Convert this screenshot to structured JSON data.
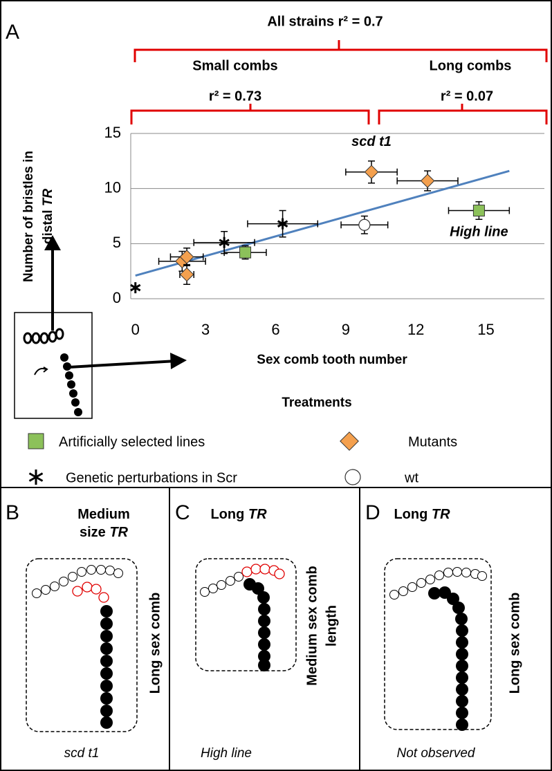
{
  "chart_data": {
    "type": "scatter",
    "panel_label": "A",
    "xlabel": "Sex comb tooth number",
    "ylabel": {
      "line1": "Number of bristles in",
      "line2": "distal",
      "line2_italic": "TR"
    },
    "xlim": [
      -0.2,
      17.5
    ],
    "ylim": [
      0,
      15
    ],
    "xticks": [
      0,
      3,
      6,
      9,
      12,
      15
    ],
    "yticks": [
      0,
      5,
      10,
      15
    ],
    "grid": true,
    "legend_title": "Treatments",
    "series": [
      {
        "name": "Artificially selected lines",
        "marker": "square",
        "color": "#8cc15a",
        "x": [
          4.7,
          14.7
        ],
        "y": [
          4.2,
          8.0
        ],
        "x_err": [
          0.9,
          1.3
        ],
        "y_err": [
          0.6,
          0.8
        ]
      },
      {
        "name": "Mutants",
        "marker": "diamond",
        "color": "#f4a04e",
        "x": [
          10.1,
          12.5,
          2.0,
          2.2,
          2.2
        ],
        "y": [
          11.5,
          10.7,
          3.4,
          3.8,
          2.2
        ],
        "x_err": [
          1.1,
          1.3,
          1.0,
          0.7,
          0.3
        ],
        "y_err": [
          1.0,
          0.9,
          0.9,
          0.8,
          0.9
        ]
      },
      {
        "name": "Genetic perturbations in Scr",
        "marker": "asterisk",
        "color": "#000000",
        "x": [
          0,
          3.8,
          6.3
        ],
        "y": [
          1.0,
          5.1,
          6.8
        ],
        "x_err": [
          0,
          1.3,
          1.5
        ],
        "y_err": [
          0,
          1.0,
          1.2
        ]
      },
      {
        "name": "wt",
        "marker": "circle",
        "color": "#ffffff",
        "x": [
          9.8
        ],
        "y": [
          6.7
        ],
        "x_err": [
          1.0
        ],
        "y_err": [
          0.8
        ]
      }
    ],
    "trendline": {
      "color": "#4f81bd",
      "x": [
        0,
        16
      ],
      "y": [
        2.1,
        11.6
      ]
    },
    "annotations": [
      {
        "text": "scd t1",
        "x": 10.1,
        "y": 14.2
      },
      {
        "text": "High line",
        "x": 14.7,
        "y": 6.0
      }
    ],
    "brackets": {
      "all": "All strains r² = 0.7",
      "small": "Small combs",
      "long": "Long combs",
      "small_r2": "r² = 0.73",
      "long_r2": "r² = 0.07"
    }
  },
  "panels": [
    {
      "label": "B",
      "title": [
        "Medium",
        "size"
      ],
      "title_italic": "TR",
      "side": [
        "Long sex comb"
      ],
      "caption": "scd t1"
    },
    {
      "label": "C",
      "title": [
        "Long"
      ],
      "title_italic": "TR",
      "side": [
        "Medium sex comb",
        "length"
      ],
      "caption": "High line"
    },
    {
      "label": "D",
      "title": [
        "Long"
      ],
      "title_italic": "TR",
      "side": [
        "Long sex comb"
      ],
      "caption": "Not observed"
    }
  ]
}
